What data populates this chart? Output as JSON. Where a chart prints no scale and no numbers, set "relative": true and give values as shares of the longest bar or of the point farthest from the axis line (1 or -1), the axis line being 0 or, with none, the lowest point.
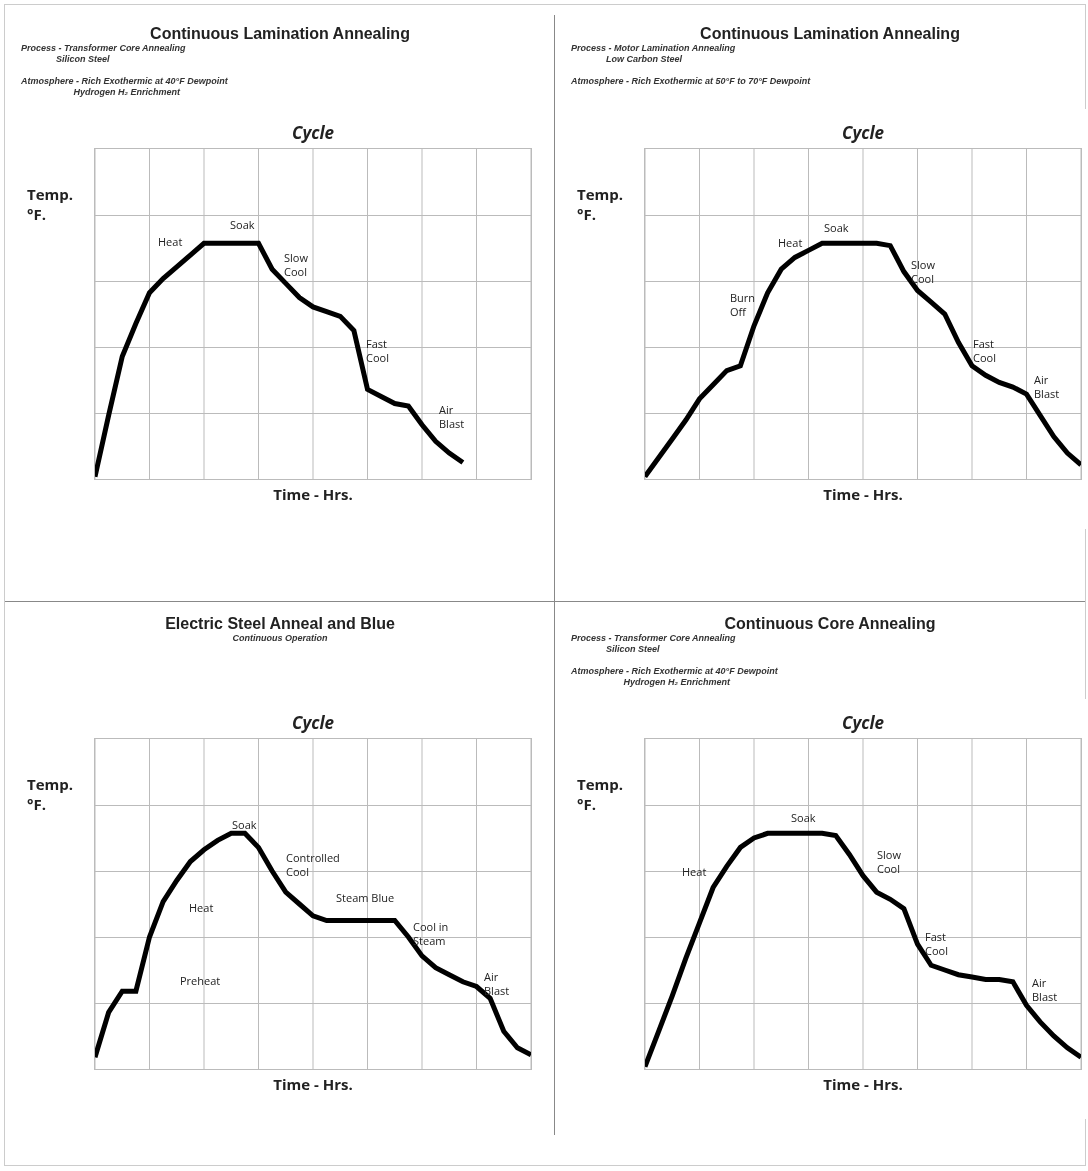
{
  "chart_data": [
    {
      "type": "line",
      "title": "Continuous Lamination Annealing",
      "subtitle": "Process - Transformer Core Annealing\n              Silicon Steel\n\nAtmosphere - Rich Exothermic at 40°F Dewpoint\n                     Hydrogen H₂ Enrichment",
      "xlabel": "Time - Hrs.",
      "ylabel": "Temp.\n°F.",
      "relative": true,
      "grid": true,
      "categories": [
        null,
        null,
        null,
        null,
        null,
        null,
        null,
        null,
        null,
        null,
        null,
        null,
        null,
        null,
        null,
        null,
        null,
        null,
        null,
        null,
        null,
        null,
        null,
        null,
        null,
        null,
        null,
        null,
        null,
        null,
        null,
        null,
        null
      ],
      "series": [
        {
          "color": "#000000",
          "values": [
            0.01,
            0.27,
            0.52,
            0.66,
            0.79,
            0.85,
            0.9,
            0.95,
            1,
            1,
            1,
            1,
            1,
            0.89,
            0.83,
            0.77,
            0.73,
            0.71,
            0.69,
            0.63,
            0.38,
            0.35,
            0.32,
            0.31,
            0.23,
            0.16,
            0.11,
            0.07,
            null,
            null,
            null,
            null,
            null
          ]
        }
      ],
      "annotations": [
        "Cycle",
        "Heat",
        "Soak",
        "Slow\nCool",
        "Fast\nCool",
        "Air\nBlast"
      ]
    },
    {
      "type": "line",
      "title": "Continuous Lamination Annealing",
      "subtitle": "Process - Motor Lamination Annealing\n              Low Carbon Steel\n\nAtmosphere - Rich Exothermic at 50°F to 70°F Dewpoint",
      "xlabel": "Time - Hrs.",
      "ylabel": "Temp.\n°F.",
      "relative": true,
      "grid": true,
      "categories": [
        null,
        null,
        null,
        null,
        null,
        null,
        null,
        null,
        null,
        null,
        null,
        null,
        null,
        null,
        null,
        null,
        null,
        null,
        null,
        null,
        null,
        null,
        null,
        null,
        null,
        null,
        null,
        null,
        null,
        null,
        null,
        null,
        null
      ],
      "series": [
        {
          "color": "#000000",
          "values": [
            0.01,
            0.09,
            0.17,
            0.25,
            0.34,
            0.4,
            0.46,
            0.48,
            0.65,
            0.79,
            0.89,
            0.94,
            0.97,
            1,
            1,
            1,
            1,
            1,
            0.99,
            0.88,
            0.8,
            0.75,
            0.7,
            0.58,
            0.48,
            0.44,
            0.41,
            0.39,
            0.36,
            0.27,
            0.18,
            0.11,
            0.06
          ]
        }
      ],
      "annotations": [
        "Cycle",
        "Burn\nOff",
        "Heat",
        "Soak",
        "Slow\nCool",
        "Fast\nCool",
        "Air\nBlast"
      ]
    },
    {
      "type": "line",
      "title": "Electric Steel Anneal and Blue",
      "subtitle": "Continuous Operation",
      "xlabel": "Time - Hrs.",
      "ylabel": "Temp.\n°F.",
      "relative": true,
      "grid": true,
      "categories": [
        null,
        null,
        null,
        null,
        null,
        null,
        null,
        null,
        null,
        null,
        null,
        null,
        null,
        null,
        null,
        null,
        null,
        null,
        null,
        null,
        null,
        null,
        null,
        null,
        null,
        null,
        null,
        null,
        null,
        null,
        null,
        null,
        null
      ],
      "series": [
        {
          "color": "#000000",
          "values": [
            0.05,
            0.24,
            0.33,
            0.33,
            0.56,
            0.71,
            0.8,
            0.88,
            0.93,
            0.97,
            1,
            1,
            0.94,
            0.84,
            0.75,
            0.7,
            0.65,
            0.63,
            0.63,
            0.63,
            0.63,
            0.63,
            0.63,
            0.56,
            0.48,
            0.43,
            0.4,
            0.37,
            0.35,
            0.3,
            0.16,
            0.09,
            0.06
          ]
        }
      ],
      "annotations": [
        "Cycle",
        "Preheat",
        "Heat",
        "Soak",
        "Controlled\nCool",
        "Steam Blue",
        "Cool in\nSteam",
        "Air\nBlast"
      ]
    },
    {
      "type": "line",
      "title": "Continuous Core Annealing",
      "subtitle": "Process - Transformer Core Annealing\n              Silicon Steel\n\nAtmosphere - Rich Exothermic at 40°F Dewpoint\n                     Hydrogen H₂ Enrichment",
      "xlabel": "Time - Hrs.",
      "ylabel": "Temp.\n°F.",
      "relative": true,
      "grid": true,
      "categories": [
        null,
        null,
        null,
        null,
        null,
        null,
        null,
        null,
        null,
        null,
        null,
        null,
        null,
        null,
        null,
        null,
        null,
        null,
        null,
        null,
        null,
        null,
        null,
        null,
        null,
        null,
        null,
        null,
        null,
        null,
        null,
        null,
        null
      ],
      "series": [
        {
          "color": "#000000",
          "values": [
            0.01,
            0.16,
            0.31,
            0.47,
            0.62,
            0.77,
            0.86,
            0.94,
            0.98,
            1,
            1,
            1,
            1,
            1,
            0.99,
            0.91,
            0.82,
            0.75,
            0.72,
            0.68,
            0.53,
            0.44,
            0.42,
            0.4,
            0.39,
            0.38,
            0.38,
            0.37,
            0.27,
            0.2,
            0.14,
            0.09,
            0.05
          ]
        }
      ],
      "annotations": [
        "Cycle",
        "Heat",
        "Soak",
        "Slow\nCool",
        "Fast\nCool",
        "Air\nBlast"
      ]
    }
  ]
}
